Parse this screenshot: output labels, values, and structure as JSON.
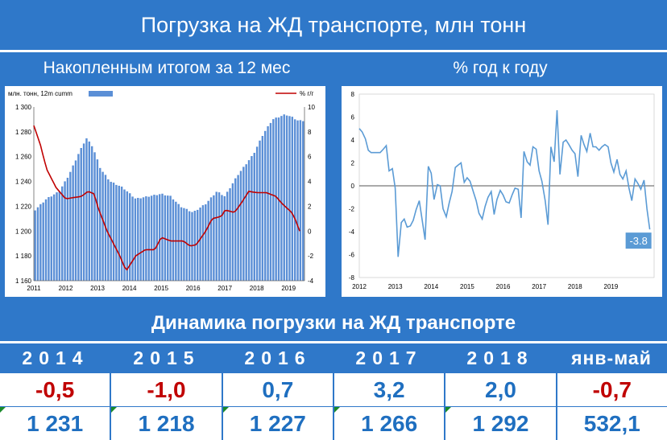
{
  "title": "Погрузка на ЖД транспорте, млн тонн",
  "left_subtitle": "Накопленным итогом за 12 мес",
  "right_subtitle": "% год к году",
  "colors": {
    "brand_blue": "#2f78c9",
    "bar_blue": "#5b8fd6",
    "line_red": "#c00000",
    "line_blue": "#5b9bd5",
    "neg_red": "#c00000",
    "pos_blue": "#1f6fc0"
  },
  "chart_data": [
    {
      "type": "bar",
      "legend": {
        "bars": "млн. тонн, 12m cumm",
        "line": "% г/г",
        "placement": "top"
      },
      "x_ticks": [
        "2011",
        "2012",
        "2013",
        "2014",
        "2015",
        "2016",
        "2017",
        "2018",
        "2019"
      ],
      "y_ticks_left": [
        "1 300",
        "1 280",
        "1 260",
        "1 240",
        "1 220",
        "1 200",
        "1 180",
        "1 160"
      ],
      "y_ticks_right": [
        "10",
        "8",
        "6",
        "4",
        "2",
        "0",
        "-2",
        "-4"
      ],
      "ylim_left": [
        1160,
        1300
      ],
      "ylim_right": [
        -4,
        10
      ],
      "bar_anchors": [
        [
          2011.0,
          1216
        ],
        [
          2011.4,
          1226
        ],
        [
          2011.8,
          1232
        ],
        [
          2012.1,
          1245
        ],
        [
          2012.4,
          1262
        ],
        [
          2012.65,
          1275
        ],
        [
          2012.85,
          1268
        ],
        [
          2013.1,
          1250
        ],
        [
          2013.4,
          1240
        ],
        [
          2013.8,
          1235
        ],
        [
          2014.2,
          1226
        ],
        [
          2014.6,
          1228
        ],
        [
          2015.0,
          1230
        ],
        [
          2015.3,
          1228
        ],
        [
          2015.6,
          1220
        ],
        [
          2016.0,
          1215
        ],
        [
          2016.4,
          1222
        ],
        [
          2016.75,
          1232
        ],
        [
          2017.0,
          1228
        ],
        [
          2017.4,
          1245
        ],
        [
          2017.9,
          1262
        ],
        [
          2018.2,
          1278
        ],
        [
          2018.5,
          1290
        ],
        [
          2018.9,
          1294
        ],
        [
          2019.1,
          1292
        ],
        [
          2019.3,
          1289
        ]
      ],
      "line_anchors": [
        [
          2011.0,
          8.5
        ],
        [
          2011.2,
          7.0
        ],
        [
          2011.4,
          5.0
        ],
        [
          2011.7,
          3.5
        ],
        [
          2012.0,
          2.6
        ],
        [
          2012.5,
          2.8
        ],
        [
          2012.7,
          3.2
        ],
        [
          2012.9,
          3.0
        ],
        [
          2013.0,
          2.0
        ],
        [
          2013.3,
          0.0
        ],
        [
          2013.7,
          -2.0
        ],
        [
          2013.9,
          -3.2
        ],
        [
          2014.2,
          -2.0
        ],
        [
          2014.5,
          -1.5
        ],
        [
          2014.8,
          -1.5
        ],
        [
          2015.0,
          -0.5
        ],
        [
          2015.3,
          -0.8
        ],
        [
          2015.7,
          -0.8
        ],
        [
          2015.9,
          -1.2
        ],
        [
          2016.1,
          -1.1
        ],
        [
          2016.4,
          0.0
        ],
        [
          2016.6,
          1.0
        ],
        [
          2016.9,
          1.2
        ],
        [
          2017.0,
          1.7
        ],
        [
          2017.3,
          1.5
        ],
        [
          2017.5,
          2.2
        ],
        [
          2017.75,
          3.2
        ],
        [
          2018.0,
          3.1
        ],
        [
          2018.3,
          3.1
        ],
        [
          2018.6,
          2.8
        ],
        [
          2018.8,
          2.2
        ],
        [
          2019.1,
          1.5
        ],
        [
          2019.2,
          1.0
        ],
        [
          2019.35,
          0.0
        ]
      ]
    },
    {
      "type": "line",
      "x_ticks": [
        "2012",
        "2013",
        "2014",
        "2015",
        "2016",
        "2017",
        "2018",
        "2019"
      ],
      "y_ticks": [
        "8",
        "6",
        "4",
        "2",
        "0",
        "-2",
        "-4",
        "-6",
        "-8"
      ],
      "ylim": [
        -8,
        8
      ],
      "last_value_label": "-3.8",
      "points": [
        [
          2012.0,
          5.0
        ],
        [
          2012.08,
          4.7
        ],
        [
          2012.17,
          4.1
        ],
        [
          2012.25,
          3.1
        ],
        [
          2012.33,
          2.9
        ],
        [
          2012.42,
          2.9
        ],
        [
          2012.5,
          2.9
        ],
        [
          2012.58,
          2.9
        ],
        [
          2012.67,
          3.2
        ],
        [
          2012.75,
          3.5
        ],
        [
          2012.83,
          1.3
        ],
        [
          2012.92,
          1.5
        ],
        [
          2013.0,
          -0.2
        ],
        [
          2013.08,
          -6.2
        ],
        [
          2013.17,
          -3.2
        ],
        [
          2013.25,
          -2.9
        ],
        [
          2013.33,
          -3.6
        ],
        [
          2013.42,
          -3.5
        ],
        [
          2013.5,
          -3.0
        ],
        [
          2013.58,
          -2.1
        ],
        [
          2013.67,
          -1.3
        ],
        [
          2013.75,
          -3.0
        ],
        [
          2013.83,
          -4.7
        ],
        [
          2013.92,
          1.7
        ],
        [
          2014.0,
          1.1
        ],
        [
          2014.08,
          -1.2
        ],
        [
          2014.17,
          0.1
        ],
        [
          2014.25,
          0.0
        ],
        [
          2014.33,
          -2.0
        ],
        [
          2014.42,
          -2.7
        ],
        [
          2014.5,
          -1.5
        ],
        [
          2014.58,
          -0.5
        ],
        [
          2014.67,
          1.6
        ],
        [
          2014.75,
          1.8
        ],
        [
          2014.83,
          2.0
        ],
        [
          2014.92,
          0.3
        ],
        [
          2015.0,
          0.7
        ],
        [
          2015.08,
          0.4
        ],
        [
          2015.17,
          -0.5
        ],
        [
          2015.25,
          -1.3
        ],
        [
          2015.33,
          -2.4
        ],
        [
          2015.42,
          -2.9
        ],
        [
          2015.5,
          -1.8
        ],
        [
          2015.58,
          -1.0
        ],
        [
          2015.67,
          -0.5
        ],
        [
          2015.75,
          -2.5
        ],
        [
          2015.83,
          -1.2
        ],
        [
          2015.92,
          -0.4
        ],
        [
          2016.0,
          -0.8
        ],
        [
          2016.08,
          -1.4
        ],
        [
          2016.17,
          -1.5
        ],
        [
          2016.25,
          -0.8
        ],
        [
          2016.33,
          -0.2
        ],
        [
          2016.42,
          -0.3
        ],
        [
          2016.5,
          -2.8
        ],
        [
          2016.58,
          3.0
        ],
        [
          2016.67,
          2.1
        ],
        [
          2016.75,
          1.8
        ],
        [
          2016.83,
          3.4
        ],
        [
          2016.92,
          3.2
        ],
        [
          2017.0,
          1.3
        ],
        [
          2017.08,
          0.4
        ],
        [
          2017.17,
          -1.3
        ],
        [
          2017.25,
          -3.4
        ],
        [
          2017.33,
          3.4
        ],
        [
          2017.42,
          2.1
        ],
        [
          2017.5,
          6.6
        ],
        [
          2017.58,
          1.0
        ],
        [
          2017.67,
          3.8
        ],
        [
          2017.75,
          4.0
        ],
        [
          2017.83,
          3.6
        ],
        [
          2017.92,
          3.1
        ],
        [
          2018.0,
          2.8
        ],
        [
          2018.08,
          0.8
        ],
        [
          2018.17,
          4.4
        ],
        [
          2018.25,
          3.6
        ],
        [
          2018.33,
          3.0
        ],
        [
          2018.42,
          4.6
        ],
        [
          2018.5,
          3.4
        ],
        [
          2018.58,
          3.4
        ],
        [
          2018.67,
          3.1
        ],
        [
          2018.75,
          3.4
        ],
        [
          2018.83,
          3.6
        ],
        [
          2018.92,
          3.4
        ],
        [
          2019.0,
          2.0
        ],
        [
          2019.08,
          1.2
        ],
        [
          2019.17,
          2.3
        ],
        [
          2019.25,
          1.0
        ],
        [
          2019.33,
          0.6
        ],
        [
          2019.42,
          1.3
        ],
        [
          2019.5,
          -0.2
        ],
        [
          2019.58,
          -1.3
        ],
        [
          2019.67,
          0.6
        ],
        [
          2019.75,
          0.2
        ],
        [
          2019.83,
          -0.3
        ],
        [
          2019.92,
          0.5
        ],
        [
          2020.0,
          -2.0
        ],
        [
          2020.08,
          -3.8
        ]
      ]
    }
  ],
  "dynamics": {
    "title": "Динамика погрузки на ЖД транспорте",
    "columns": [
      {
        "header": "2014",
        "yoy": "-0,5",
        "volume": "1 231",
        "tone": "neg"
      },
      {
        "header": "2015",
        "yoy": "-1,0",
        "volume": "1 218",
        "tone": "neg"
      },
      {
        "header": "2016",
        "yoy": "0,7",
        "volume": "1 227",
        "tone": "pos"
      },
      {
        "header": "2017",
        "yoy": "3,2",
        "volume": "1 266",
        "tone": "pos"
      },
      {
        "header": "2018",
        "yoy": "2,0",
        "volume": "1 292",
        "tone": "pos"
      },
      {
        "header": "янв-май",
        "yoy": "-0,7",
        "volume": "532,1",
        "tone": "neg"
      }
    ]
  }
}
